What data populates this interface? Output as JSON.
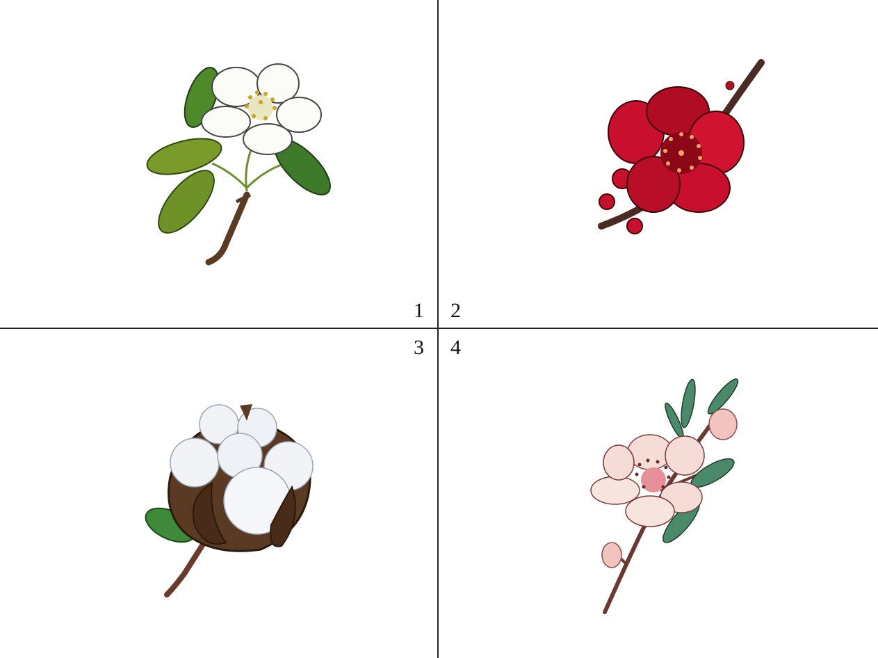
{
  "panels": [
    {
      "number": "1",
      "subject": "pear-blossom"
    },
    {
      "number": "2",
      "subject": "red-quince-blossom"
    },
    {
      "number": "3",
      "subject": "cotton-boll"
    },
    {
      "number": "4",
      "subject": "peach-blossom"
    }
  ],
  "colors": {
    "divider": "#222222",
    "white_petal": "#fbfbf7",
    "leaf_green": "#5f8a2a",
    "crimson": "#c8102e",
    "cotton": "#f1f3f6",
    "husk_brown": "#5a3a22",
    "pink_petal": "#f6dcd6",
    "teal_leaf": "#4a8a6a"
  }
}
